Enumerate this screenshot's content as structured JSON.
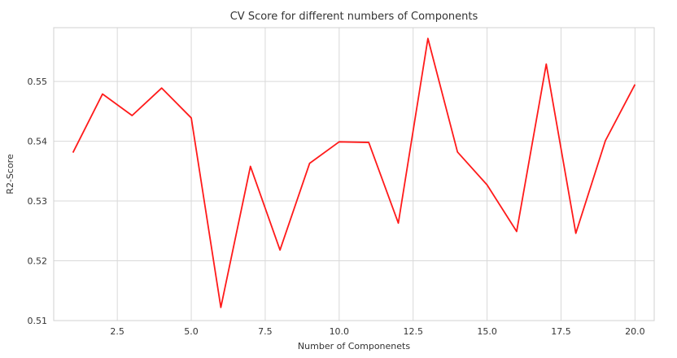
{
  "chart_data": {
    "type": "line",
    "title": "CV Score for different numbers of Components",
    "xlabel": "Number of Componenets",
    "ylabel": "R2-Score",
    "xlim": [
      0.35,
      20.65
    ],
    "ylim": [
      0.51,
      0.559
    ],
    "xticks": [
      2.5,
      5.0,
      7.5,
      10.0,
      12.5,
      15.0,
      17.5,
      20.0
    ],
    "xtick_labels": [
      "2.5",
      "5.0",
      "7.5",
      "10.0",
      "12.5",
      "15.0",
      "17.5",
      "20.0"
    ],
    "yticks": [
      0.51,
      0.52,
      0.53,
      0.54,
      0.55
    ],
    "ytick_labels": [
      "0.51",
      "0.52",
      "0.53",
      "0.54",
      "0.55"
    ],
    "grid": true,
    "legend": "none",
    "series": [
      {
        "color": "#ff1a1a",
        "x": [
          1,
          2,
          3,
          4,
          5,
          6,
          7,
          8,
          9,
          10,
          11,
          12,
          13,
          14,
          15,
          16,
          17,
          18,
          19,
          20
        ],
        "y": [
          0.5381,
          0.5479,
          0.5443,
          0.5489,
          0.5439,
          0.5122,
          0.5358,
          0.5218,
          0.5363,
          0.5399,
          0.5398,
          0.5263,
          0.5572,
          0.5382,
          0.5327,
          0.5249,
          0.5529,
          0.5246,
          0.5401,
          0.5495
        ]
      }
    ]
  }
}
